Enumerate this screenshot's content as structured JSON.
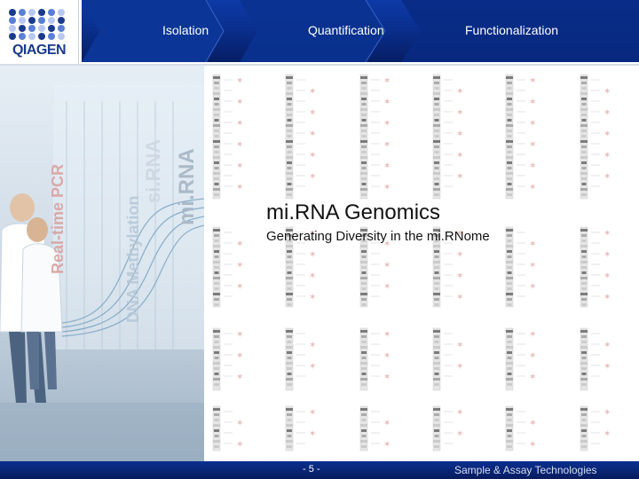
{
  "header": {
    "logo": {
      "text": "QIAGEN"
    },
    "steps": [
      {
        "label": "Isolation"
      },
      {
        "label": "Quantification"
      },
      {
        "label": "Functionalization"
      }
    ]
  },
  "slide": {
    "title": "mi.RNA Genomics",
    "subtitle": "Generating Diversity in the mi.RNome"
  },
  "photo": {
    "overlay_words": [
      "Real-time PCR",
      "DNA Methylation",
      "si.RNA",
      "mi.RNA"
    ]
  },
  "footer": {
    "page": "- 5 -",
    "tagline": "Sample & Assay Technologies"
  },
  "colors": {
    "brand_blue": "#0b2f8f",
    "logo_red": "#c0392b",
    "logo_blue": "#1a3a8c",
    "star_pink": "#e8b8b8"
  },
  "icons": {
    "logo_dots": "qiagen-dot-grid-icon"
  }
}
